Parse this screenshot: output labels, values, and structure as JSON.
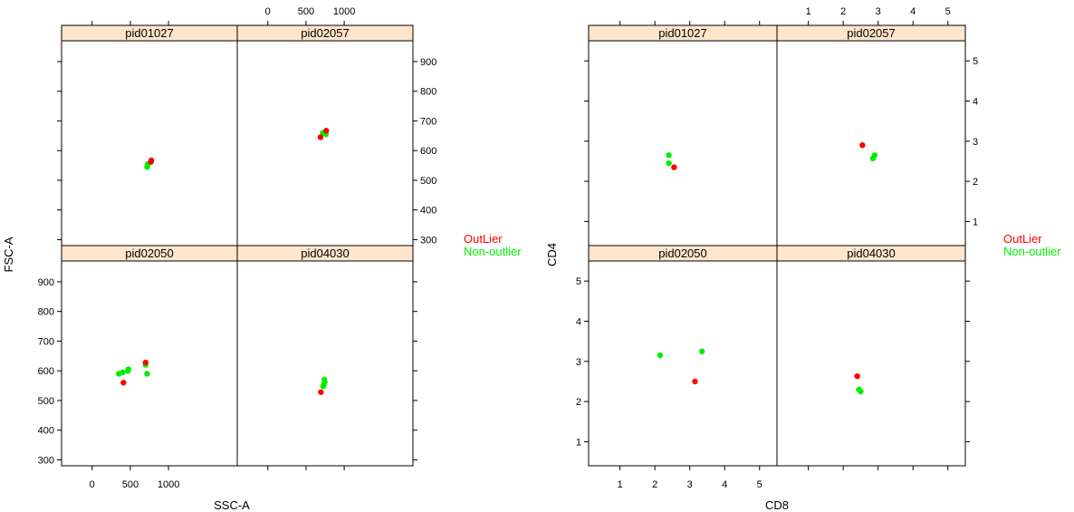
{
  "colors": {
    "outlier": "#ff0000",
    "non_outlier": "#00ee00",
    "strip": "#ffe5cc"
  },
  "chart_data": [
    {
      "type": "scatter",
      "layout": "2x2 lattice",
      "xlabel": "SSC-A",
      "ylabel": "FSC-A",
      "xlim": [
        -400,
        1900
      ],
      "ylim": [
        280,
        970
      ],
      "xticks": [
        "0",
        "500",
        "1000"
      ],
      "yticks": [
        "300",
        "400",
        "500",
        "600",
        "700",
        "800",
        "900"
      ],
      "legend": {
        "placement": "right",
        "entries": [
          "OutLier",
          "Non-outlier"
        ]
      },
      "panels": [
        {
          "name": "pid01027",
          "points": [
            {
              "x": 720,
              "y": 545,
              "g": "Non-outlier"
            },
            {
              "x": 725,
              "y": 550,
              "g": "Non-outlier"
            },
            {
              "x": 730,
              "y": 555,
              "g": "Non-outlier"
            },
            {
              "x": 770,
              "y": 562,
              "g": "OutLier"
            },
            {
              "x": 775,
              "y": 567,
              "g": "OutLier"
            }
          ]
        },
        {
          "name": "pid02057",
          "points": [
            {
              "x": 720,
              "y": 660,
              "g": "Non-outlier"
            },
            {
              "x": 760,
              "y": 655,
              "g": "Non-outlier"
            },
            {
              "x": 690,
              "y": 645,
              "g": "OutLier"
            },
            {
              "x": 765,
              "y": 667,
              "g": "OutLier"
            }
          ]
        },
        {
          "name": "pid02050",
          "points": [
            {
              "x": 350,
              "y": 590,
              "g": "Non-outlier"
            },
            {
              "x": 400,
              "y": 595,
              "g": "Non-outlier"
            },
            {
              "x": 470,
              "y": 600,
              "g": "Non-outlier"
            },
            {
              "x": 475,
              "y": 605,
              "g": "Non-outlier"
            },
            {
              "x": 700,
              "y": 620,
              "g": "Non-outlier"
            },
            {
              "x": 720,
              "y": 590,
              "g": "Non-outlier"
            },
            {
              "x": 700,
              "y": 628,
              "g": "OutLier"
            },
            {
              "x": 410,
              "y": 560,
              "g": "OutLier"
            }
          ]
        },
        {
          "name": "pid04030",
          "points": [
            {
              "x": 740,
              "y": 570,
              "g": "Non-outlier"
            },
            {
              "x": 745,
              "y": 562,
              "g": "Non-outlier"
            },
            {
              "x": 735,
              "y": 555,
              "g": "Non-outlier"
            },
            {
              "x": 725,
              "y": 548,
              "g": "Non-outlier"
            },
            {
              "x": 695,
              "y": 528,
              "g": "OutLier"
            }
          ]
        }
      ]
    },
    {
      "type": "scatter",
      "layout": "2x2 lattice",
      "xlabel": "CD8",
      "ylabel": "CD4",
      "xlim": [
        0.1,
        5.5
      ],
      "ylim": [
        0.4,
        5.5
      ],
      "xticks": [
        "1",
        "2",
        "3",
        "4",
        "5"
      ],
      "yticks": [
        "1",
        "2",
        "3",
        "4",
        "5"
      ],
      "legend": {
        "placement": "right",
        "entries": [
          "OutLier",
          "Non-outlier"
        ]
      },
      "panels": [
        {
          "name": "pid01027",
          "points": [
            {
              "x": 2.4,
              "y": 2.65,
              "g": "Non-outlier"
            },
            {
              "x": 2.4,
              "y": 2.45,
              "g": "Non-outlier"
            },
            {
              "x": 2.55,
              "y": 2.35,
              "g": "OutLier"
            }
          ]
        },
        {
          "name": "pid02057",
          "points": [
            {
              "x": 2.55,
              "y": 2.9,
              "g": "OutLier"
            },
            {
              "x": 2.85,
              "y": 2.57,
              "g": "Non-outlier"
            },
            {
              "x": 2.9,
              "y": 2.65,
              "g": "Non-outlier"
            }
          ]
        },
        {
          "name": "pid02050",
          "points": [
            {
              "x": 2.15,
              "y": 3.15,
              "g": "Non-outlier"
            },
            {
              "x": 3.35,
              "y": 3.25,
              "g": "Non-outlier"
            },
            {
              "x": 3.15,
              "y": 2.5,
              "g": "OutLier"
            }
          ]
        },
        {
          "name": "pid04030",
          "points": [
            {
              "x": 2.4,
              "y": 2.63,
              "g": "OutLier"
            },
            {
              "x": 2.45,
              "y": 2.3,
              "g": "Non-outlier"
            },
            {
              "x": 2.5,
              "y": 2.25,
              "g": "Non-outlier"
            }
          ]
        }
      ]
    }
  ]
}
